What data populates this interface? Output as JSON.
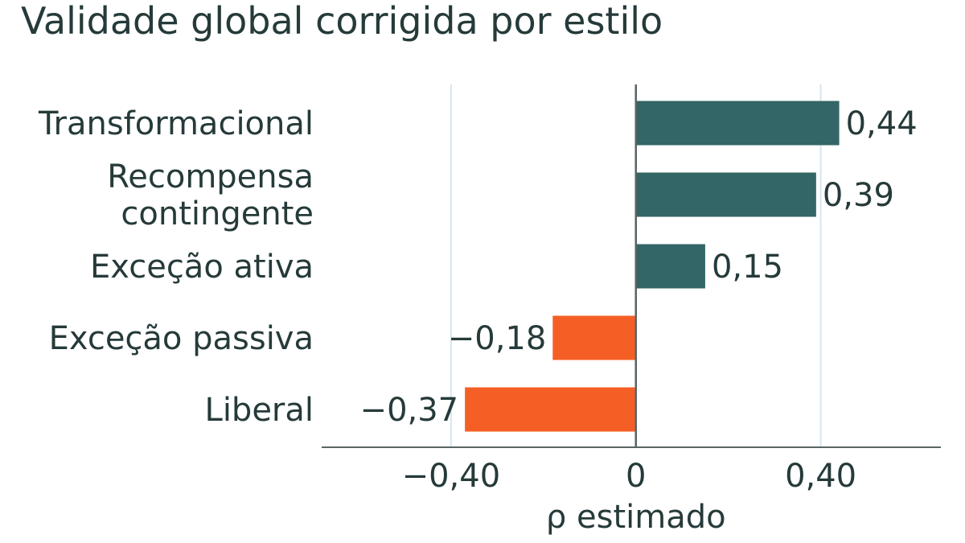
{
  "chart_data": {
    "type": "bar",
    "orientation": "horizontal",
    "title": "Validade global corrigida por estilo",
    "xlabel": "ρ estimado",
    "ylabel": "",
    "categories": [
      [
        "Transformacional"
      ],
      [
        "Recompensa",
        "contingente"
      ],
      [
        "Exceção ativa"
      ],
      [
        "Exceção passiva"
      ],
      [
        "Liberal"
      ]
    ],
    "values": [
      0.44,
      0.39,
      0.15,
      -0.18,
      -0.37
    ],
    "value_labels": [
      "0,44",
      "0,39",
      "0,15",
      "−0,18",
      "−0,37"
    ],
    "xlim": [
      -0.68,
      0.66
    ],
    "xticks": [
      -0.4,
      0,
      0.4
    ],
    "xtick_labels": [
      "−0,40",
      "0",
      "0,40"
    ],
    "grid": "vertical",
    "colors": {
      "positive": "#336666",
      "negative": "#f55f26",
      "text": "#263a3a",
      "grid": "#d6e6f0",
      "axis": "#5a6464"
    }
  }
}
